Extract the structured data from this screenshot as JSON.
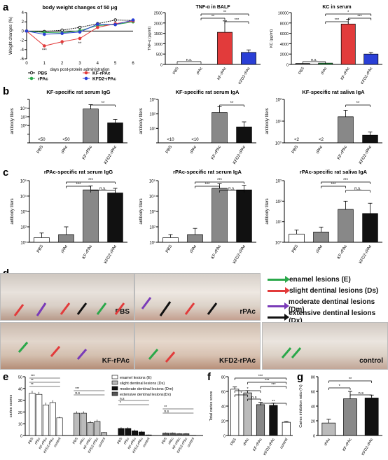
{
  "panel_labels": {
    "a": "a",
    "b": "b",
    "c": "c",
    "d": "d",
    "e": "e",
    "f": "f",
    "g": "g"
  },
  "colors": {
    "red": "#e23b3b",
    "blue": "#2a3fd6",
    "green": "#2aa84a",
    "gray": "#888888",
    "black": "#111111",
    "white": "#ffffff",
    "dgray": "#555555",
    "lgray": "#bbbbbb",
    "purple": "#7a3bb8"
  },
  "chart_data": [
    {
      "id": "a1",
      "type": "line",
      "title": "body weight changes of 50 μg",
      "xlabel": "days post-protein administration",
      "ylabel": "Weight changes (%)",
      "x": [
        0,
        1,
        2,
        3,
        4,
        5,
        6
      ],
      "ylim": [
        -6,
        4
      ],
      "yticks": [
        "-6",
        "-4",
        "-2",
        "0",
        "2",
        "4"
      ],
      "xticks": [
        "0",
        "1",
        "2",
        "3",
        "4",
        "5",
        "6"
      ],
      "series": [
        {
          "name": "PBS",
          "color": "#111111",
          "marker": "circle-open",
          "values": [
            0,
            -0.1,
            0.2,
            0.8,
            1.6,
            2.4,
            2.3
          ]
        },
        {
          "name": "rPAc",
          "color": "#2aa84a",
          "marker": "circle",
          "values": [
            0,
            -0.3,
            -0.4,
            0.1,
            1.2,
            1.4,
            2.0
          ]
        },
        {
          "name": "KF-rPAc",
          "color": "#e23b3b",
          "marker": "circle",
          "values": [
            0,
            -3.2,
            -2.3,
            -1.6,
            0.8,
            1.6,
            2.2
          ]
        },
        {
          "name": "KFD2-rPAc",
          "color": "#2a3fd6",
          "marker": "circle",
          "values": [
            0,
            -0.7,
            -0.5,
            -0.2,
            1.5,
            1.4,
            2.4
          ]
        }
      ],
      "annotations": [
        "***",
        "*",
        "**"
      ]
    },
    {
      "id": "a2",
      "type": "bar",
      "title": "TNF-α in BALF",
      "ylabel": "TNF-α (pg/ml)",
      "categories": [
        "PBS",
        "rPAc",
        "KF-rPAc",
        "KFD2-rPAc"
      ],
      "values": [
        5,
        5,
        1550,
        580
      ],
      "errors": [
        0,
        0,
        550,
        120
      ],
      "ylim": [
        0,
        2500
      ],
      "yticks": [
        "0",
        "500",
        "1000",
        "1500",
        "2000",
        "2500"
      ],
      "colors": [
        "#888888",
        "#2aa84a",
        "#e23b3b",
        "#2a3fd6"
      ],
      "sig": [
        "n.s.",
        "***",
        "**",
        "**"
      ]
    },
    {
      "id": "a3",
      "type": "bar",
      "title": "KC in serum",
      "ylabel": "KC (pg/ml)",
      "categories": [
        "PBS",
        "rPAc",
        "KF-rPAc",
        "KFD2-rPAc"
      ],
      "values": [
        200,
        250,
        7800,
        2000
      ],
      "errors": [
        0,
        0,
        900,
        300
      ],
      "ylim": [
        0,
        10000
      ],
      "yticks": [
        "0",
        "2000",
        "4000",
        "6000",
        "8000",
        "10000"
      ],
      "colors": [
        "#888888",
        "#2aa84a",
        "#e23b3b",
        "#2a3fd6"
      ],
      "sig": [
        "n.s.",
        "***",
        "*",
        "***"
      ]
    },
    {
      "id": "b1",
      "type": "bar",
      "title": "KF-specific rat serum IgG",
      "ylabel": "antibody titers",
      "categories": [
        "PBS",
        "rPAc",
        "KF-rPAc",
        "KFD2-rPAc"
      ],
      "values": [
        0,
        0,
        3.9,
        2.3
      ],
      "errors": [
        0,
        0,
        0.5,
        0.4
      ],
      "ylim": [
        0,
        5
      ],
      "yticks": [
        "",
        "",
        "10²",
        "10³",
        "10⁴",
        ""
      ],
      "below": [
        "<50",
        "<50",
        "",
        ""
      ],
      "colors": [
        "#888888",
        "#888888",
        "#888888",
        "#111111"
      ],
      "sig": [
        "**"
      ]
    },
    {
      "id": "b2",
      "type": "bar",
      "title": "KF-specific rat serum IgA",
      "ylabel": "antibody titers",
      "categories": [
        "PBS",
        "rPAc",
        "KF-rPAc",
        "KFD2-rPAc"
      ],
      "values": [
        0,
        0,
        2.1,
        1.1
      ],
      "errors": [
        0,
        0,
        0.4,
        0.35
      ],
      "ylim": [
        0,
        3
      ],
      "yticks": [
        "",
        "10¹",
        "10²",
        "10³"
      ],
      "below": [
        "<10",
        "<10",
        "",
        ""
      ],
      "colors": [
        "#888888",
        "#888888",
        "#888888",
        "#111111"
      ],
      "sig": [
        "**"
      ]
    },
    {
      "id": "b3",
      "type": "bar",
      "title": "KF-specific rat saliva IgA",
      "ylabel": "antibody titers",
      "categories": [
        "PBS",
        "rPAc",
        "KF-rPAc",
        "KFD2-rPAc"
      ],
      "values": [
        0,
        0,
        1.2,
        0.35
      ],
      "errors": [
        0,
        0,
        0.3,
        0.15
      ],
      "ylim": [
        0,
        2
      ],
      "yticks": [
        "10⁰",
        "10¹",
        "10²"
      ],
      "below": [
        "<2",
        "<2",
        "",
        ""
      ],
      "colors": [
        "#888888",
        "#888888",
        "#888888",
        "#111111"
      ],
      "sig": [
        "**"
      ]
    },
    {
      "id": "c1",
      "type": "bar",
      "title": "rPAc-specific rat serum IgG",
      "ylabel": "antibody titers",
      "categories": [
        "PBS",
        "rPAc",
        "KF-rPAc",
        "KFD2-rPAc"
      ],
      "values": [
        1.3,
        1.5,
        4.4,
        4.2
      ],
      "errors": [
        0.3,
        0.5,
        0.25,
        0.3
      ],
      "ylim": [
        1,
        5
      ],
      "yticks": [
        "10¹",
        "10²",
        "10³",
        "10⁴",
        "10⁵"
      ],
      "colors": [
        "#ffffff",
        "#888888",
        "#888888",
        "#111111"
      ],
      "sig": [
        "***",
        "***",
        "n.s."
      ]
    },
    {
      "id": "c2",
      "type": "bar",
      "title": "rPAc-specific rat serum IgA",
      "ylabel": "antibody titers",
      "categories": [
        "PBS",
        "rPAc",
        "KF-rPAc",
        "KFD2-rPAc"
      ],
      "values": [
        1.3,
        1.5,
        4.5,
        4.4
      ],
      "errors": [
        0.2,
        0.4,
        0.3,
        0.3
      ],
      "ylim": [
        1,
        5
      ],
      "yticks": [
        "10¹",
        "10²",
        "10³",
        "10⁴",
        "10⁵"
      ],
      "colors": [
        "#ffffff",
        "#888888",
        "#888888",
        "#111111"
      ],
      "sig": [
        "***",
        "***",
        "n.s."
      ]
    },
    {
      "id": "c3",
      "type": "bar",
      "title": "rPAc-specific rat saliva IgA",
      "ylabel": "antibody titers",
      "categories": [
        "PBS",
        "rPAc",
        "KF-rPAc",
        "KFD2-rPAc"
      ],
      "values": [
        1.2,
        1.25,
        1.8,
        1.7
      ],
      "errors": [
        0.1,
        0.12,
        0.2,
        0.25
      ],
      "ylim": [
        1,
        2.5
      ],
      "yticks": [
        "10⁰",
        "10¹",
        "10²",
        "10³"
      ],
      "colors": [
        "#ffffff",
        "#888888",
        "#888888",
        "#111111"
      ],
      "sig": [
        "***",
        "***",
        "n.s."
      ]
    },
    {
      "id": "e",
      "type": "bar",
      "ylabel": "caries scores",
      "ylim": [
        0,
        50
      ],
      "yticks": [
        "0",
        "10",
        "20",
        "30",
        "40",
        "50"
      ],
      "groups": [
        "enamel lesions (E)",
        "slight dentinal lesions (Ds)",
        "moderate dentinal lesions (Dm)",
        "extensive dentinal lesions(Dx)"
      ],
      "group_colors": [
        "#ffffff",
        "#bbbbbb",
        "#111111",
        "#555555"
      ],
      "categories": [
        "PBS",
        "rPAc",
        "KF-rPAc",
        "KFD2-rPAc",
        "control"
      ],
      "values": [
        [
          36,
          35,
          26,
          28,
          15
        ],
        [
          19,
          19,
          11,
          12,
          2.5
        ],
        [
          6,
          6,
          4,
          3,
          0.5
        ],
        [
          2,
          2,
          1.5,
          1.5,
          0.2
        ]
      ],
      "errors": [
        [
          2,
          2,
          2,
          2,
          1
        ],
        [
          1.5,
          1.5,
          1.5,
          1.5,
          0.5
        ],
        [
          1,
          1,
          1,
          1,
          0.3
        ],
        [
          0.6,
          0.6,
          0.5,
          0.5,
          0.1
        ]
      ],
      "sig_labels": [
        "***",
        "**",
        "**",
        "***",
        "n.s",
        "n.s",
        "*",
        "**",
        "n.s"
      ]
    },
    {
      "id": "f",
      "type": "bar",
      "ylabel": "Total caries score",
      "categories": [
        "PBS",
        "rPAc",
        "KF-rPAc",
        "KFD2-rPAc",
        "control"
      ],
      "values": [
        63,
        58,
        42,
        41,
        18
      ],
      "errors": [
        3,
        3,
        3,
        3,
        1
      ],
      "ylim": [
        0,
        80
      ],
      "yticks": [
        "0",
        "20",
        "40",
        "60",
        "80"
      ],
      "colors": [
        "#ffffff",
        "#bbbbbb",
        "#888888",
        "#111111",
        "#ffffff"
      ],
      "sig": [
        "***",
        "***",
        "***",
        "*",
        "*",
        "n.s",
        "**"
      ]
    },
    {
      "id": "g",
      "type": "bar",
      "ylabel": "Caries inhibition ratio (%)",
      "categories": [
        "rPAc",
        "KF-rPAc",
        "KFD2-rPAc"
      ],
      "values": [
        17,
        50,
        51
      ],
      "errors": [
        5,
        10,
        4
      ],
      "ylim": [
        0,
        80
      ],
      "yticks": [
        "0",
        "20",
        "40",
        "60",
        "80"
      ],
      "colors": [
        "#bbbbbb",
        "#888888",
        "#111111"
      ],
      "sig": [
        "**",
        "*",
        "n.s"
      ]
    }
  ],
  "photos": {
    "items": [
      {
        "label": "PBS"
      },
      {
        "label": "rPAc"
      },
      {
        "label": "KF-rPAc"
      },
      {
        "label": "KFD2-rPAc"
      },
      {
        "label": "control"
      }
    ],
    "legend": [
      {
        "text": "enamel lesions (E)",
        "color": "#2aa84a"
      },
      {
        "text": "slight dentinal lesions (Ds)",
        "color": "#e23b3b"
      },
      {
        "text": "moderate dentinal lesions (Dm)",
        "color": "#7a3bb8"
      },
      {
        "text": "extensive dentinal lesions (Dx)",
        "color": "#111111"
      }
    ]
  }
}
